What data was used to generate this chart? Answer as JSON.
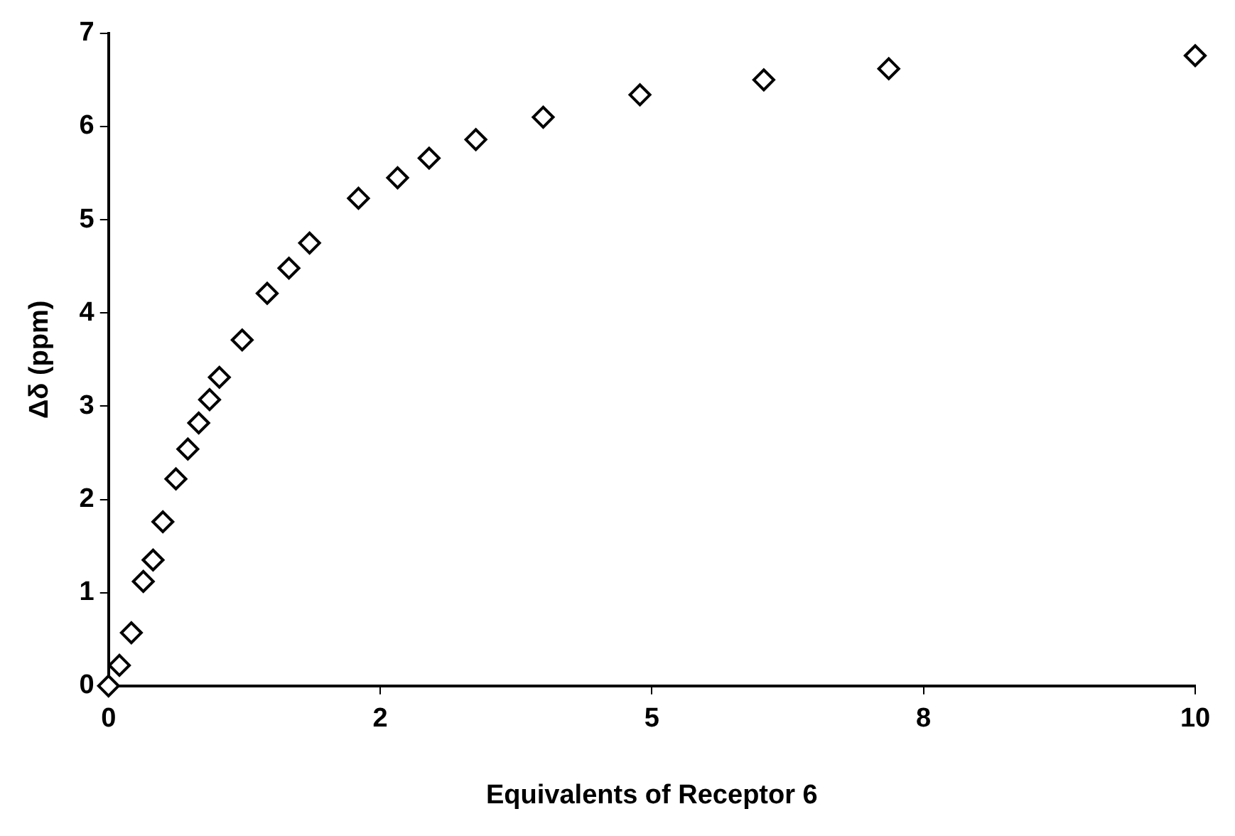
{
  "chart_data": {
    "type": "scatter",
    "xlabel": "Equivalents of Receptor 6",
    "ylabel": "Δδ (ppm)",
    "series": [
      {
        "color": "#000000",
        "x": [
          0,
          0.1,
          0.21,
          0.32,
          0.41,
          0.5,
          0.62,
          0.73,
          0.83,
          0.93,
          1.02,
          1.23,
          1.46,
          1.66,
          1.85,
          2.3,
          2.66,
          2.95,
          3.38,
          4.0,
          4.89,
          6.03,
          7.18,
          10
        ],
        "values": [
          0,
          0.22,
          0.57,
          1.12,
          1.35,
          1.76,
          2.22,
          2.54,
          2.82,
          3.07,
          3.31,
          3.71,
          4.21,
          4.48,
          4.75,
          5.23,
          5.45,
          5.66,
          5.86,
          6.1,
          6.34,
          6.5,
          6.62,
          6.76
        ]
      }
    ],
    "xlim": [
      0,
      10
    ],
    "xticks": [
      0,
      {
        "value": 2.5,
        "label": "2"
      },
      5,
      {
        "value": 7.5,
        "label": "8"
      },
      10
    ],
    "ylim": [
      0,
      7
    ],
    "yticks": [
      0,
      1,
      2,
      3,
      4,
      5,
      6,
      7
    ],
    "marker": "diamond",
    "grid": false,
    "legend": false
  }
}
